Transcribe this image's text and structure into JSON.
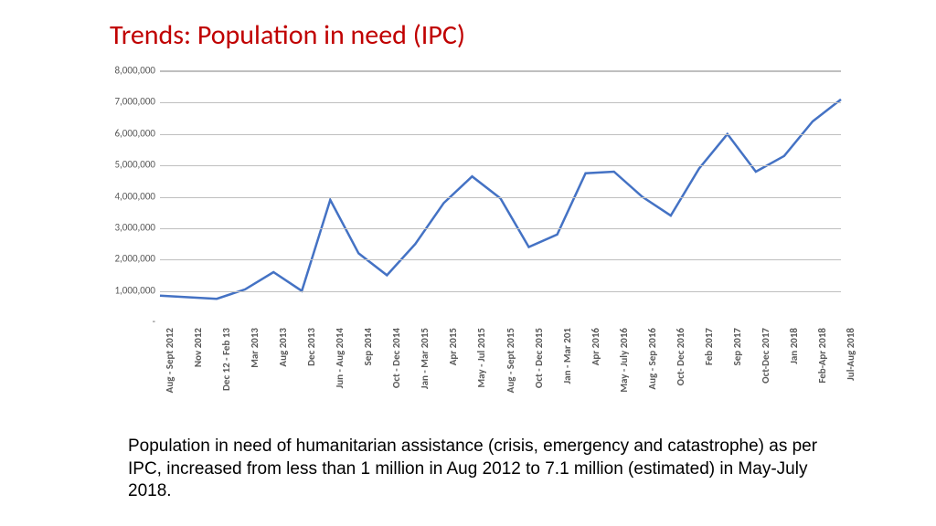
{
  "title": "Trends: Population in need (IPC)",
  "title_color": "#c00000",
  "title_fontsize": 30,
  "caption": "Population in need of humanitarian assistance (crisis, emergency and catastrophe) as per IPC, increased from less than 1 million in Aug 2012 to 7.1 million (estimated) in May-July 2018.",
  "caption_color": "#000000",
  "caption_fontsize": 19,
  "chart": {
    "type": "line",
    "line_color": "#4472c4",
    "line_width": 2.5,
    "background_color": "#ffffff",
    "grid_color": "#bfbfbf",
    "ytick_color": "#595959",
    "xtick_color": "#595959",
    "ytick_fontsize": 11,
    "xtick_fontsize": 11,
    "ylim": [
      0,
      8000000
    ],
    "ytick_step": 1000000,
    "ytick_labels": [
      "-",
      "1,000,000",
      "2,000,000",
      "3,000,000",
      "4,000,000",
      "5,000,000",
      "6,000,000",
      "7,000,000",
      "8,000,000"
    ],
    "categories": [
      "Aug - Sept 2012",
      "Nov 2012",
      "Dec 12 - Feb 13",
      "Mar 2013",
      "Aug 2013",
      "Dec 2013",
      "Jun - Aug 2014",
      "Sep 2014",
      "Oct - Dec 2014",
      "Jan - Mar 2015",
      "Apr 2015",
      "May - Jul 2015",
      "Aug - Sept 2015",
      "Oct - Dec 2015",
      "Jan - Mar 201",
      "Apr 2016",
      "May - July 2016",
      "Aug - Sep 2016",
      "Oct- Dec 2016",
      "Feb 2017",
      "Sep 2017",
      "Oct-Dec 2017",
      "Jan 2018",
      "Feb-Apr 2018",
      "Jul-Aug 2018"
    ],
    "values": [
      850000,
      800000,
      750000,
      1050000,
      1600000,
      1000000,
      3900000,
      2200000,
      1500000,
      2500000,
      3800000,
      4650000,
      3950000,
      2400000,
      2800000,
      4750000,
      4800000,
      4000000,
      3400000,
      4900000,
      6000000,
      4800000,
      5300000,
      6400000,
      7100000
    ]
  }
}
